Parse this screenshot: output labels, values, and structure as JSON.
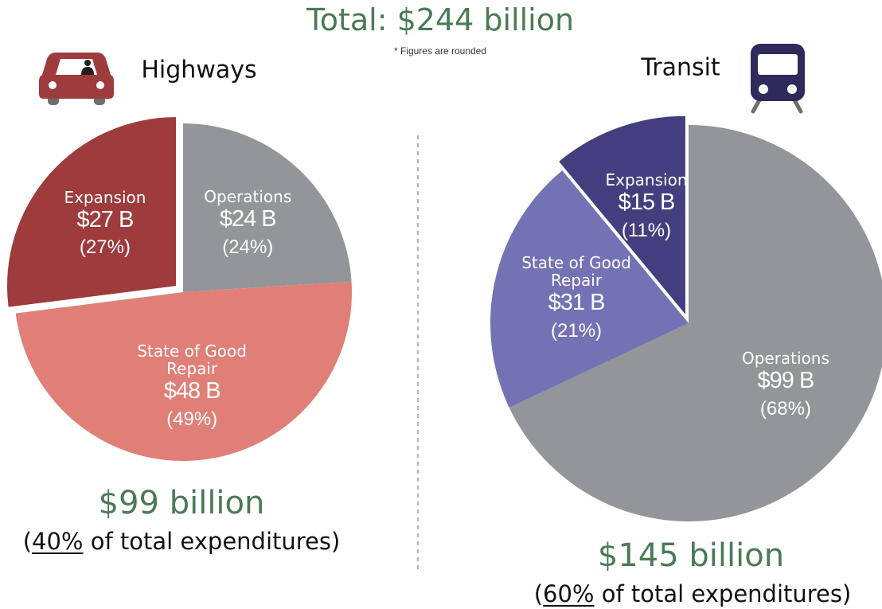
{
  "title": "Total: $244 billion",
  "note": "* Figures are rounded",
  "chart_data": [
    {
      "type": "pie",
      "title": "Highways",
      "categories": [
        "Operations",
        "State of Good Repair",
        "Expansion"
      ],
      "values": [
        24,
        49,
        27
      ],
      "value_labels": [
        "(24%)",
        "(49%)",
        "(27%)"
      ],
      "amount_labels": [
        "$24 B",
        "$48 B",
        "$27 B"
      ],
      "colors": [
        "#939598",
        "#e07f78",
        "#9e3b3d"
      ],
      "exploded": [
        false,
        false,
        true
      ],
      "total": "$99 billion",
      "share_parts": [
        "(",
        "40%",
        " of total expenditures)"
      ]
    },
    {
      "type": "pie",
      "title": "Transit",
      "categories": [
        "Operations",
        "State of Good Repair",
        "Expansion"
      ],
      "values": [
        68,
        21,
        11
      ],
      "value_labels": [
        "(68%)",
        "(21%)",
        "(11%)"
      ],
      "amount_labels": [
        "$99 B",
        "$31 B",
        "$15 B"
      ],
      "colors": [
        "#939598",
        "#7272b4",
        "#433f7f"
      ],
      "exploded": [
        false,
        false,
        true
      ],
      "total": "$145 billion",
      "share_parts": [
        "(",
        "60%",
        " of total expenditures)"
      ]
    }
  ]
}
